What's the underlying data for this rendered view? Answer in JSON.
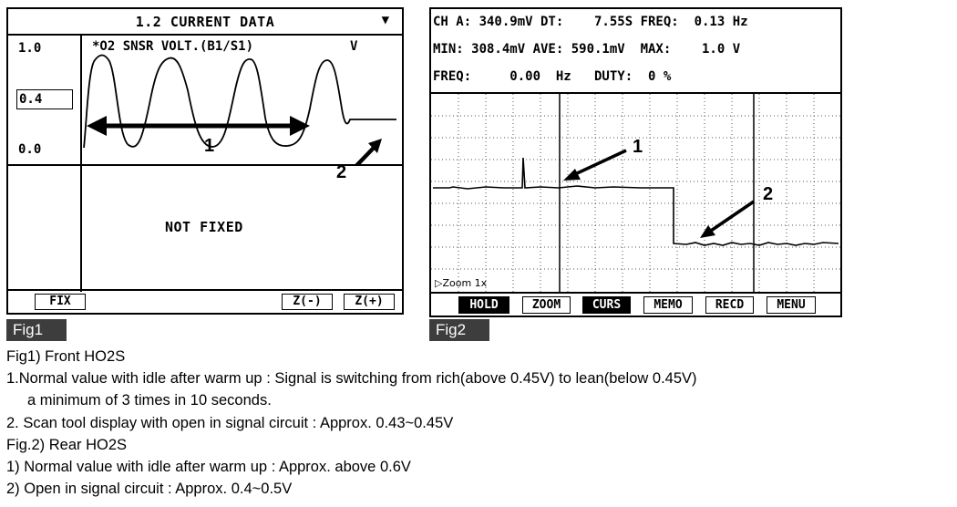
{
  "fig1": {
    "title": "1.2 CURRENT DATA",
    "title_arrow": "▼",
    "y_max": "1.0",
    "y_mid": "0.4",
    "y_min": "0.0",
    "parameter": "*O2 SNSR VOLT.(B1/S1)",
    "unit": "V",
    "label_1": "1",
    "label_2": "2",
    "status": "NOT FIXED",
    "buttons": {
      "fix": "FIX",
      "zoom_out": "Z(-)",
      "zoom_in": "Z(+)"
    }
  },
  "fig2": {
    "line1": "CH A: 340.9mV DT:    7.55S FREQ:  0.13 Hz",
    "line2": "MIN: 308.4mV AVE: 590.1mV  MAX:    1.0 V",
    "line3": "FREQ:     0.00  Hz   DUTY:  0 %",
    "label_1": "1",
    "label_2": "2",
    "zoom": "Zoom 1x",
    "buttons": {
      "hold": "HOLD",
      "zoom": "ZOOM",
      "curs": "CURS",
      "memo": "MEMO",
      "recd": "RECD",
      "menu": "MENU"
    }
  },
  "fig1_tag": "Fig1",
  "fig2_tag": "Fig2",
  "caption": {
    "l1": "Fig1) Front HO2S",
    "l2": "1.Normal value with idle after warm up : Signal is switching from rich(above 0.45V) to lean(below 0.45V)",
    "l3": "a minimum of 3 times in 10 seconds.",
    "l4": "2. Scan tool display with open in signal circuit : Approx. 0.43~0.45V",
    "l5": "Fig.2) Rear HO2S",
    "l6": "1) Normal value with idle after warm up : Approx. above 0.6V",
    "l7": "2) Open in signal circuit : Approx. 0.4~0.5V"
  },
  "colors": {
    "ink": "#000000",
    "tag_bg": "#3d3d3d",
    "grid": "#555555"
  }
}
